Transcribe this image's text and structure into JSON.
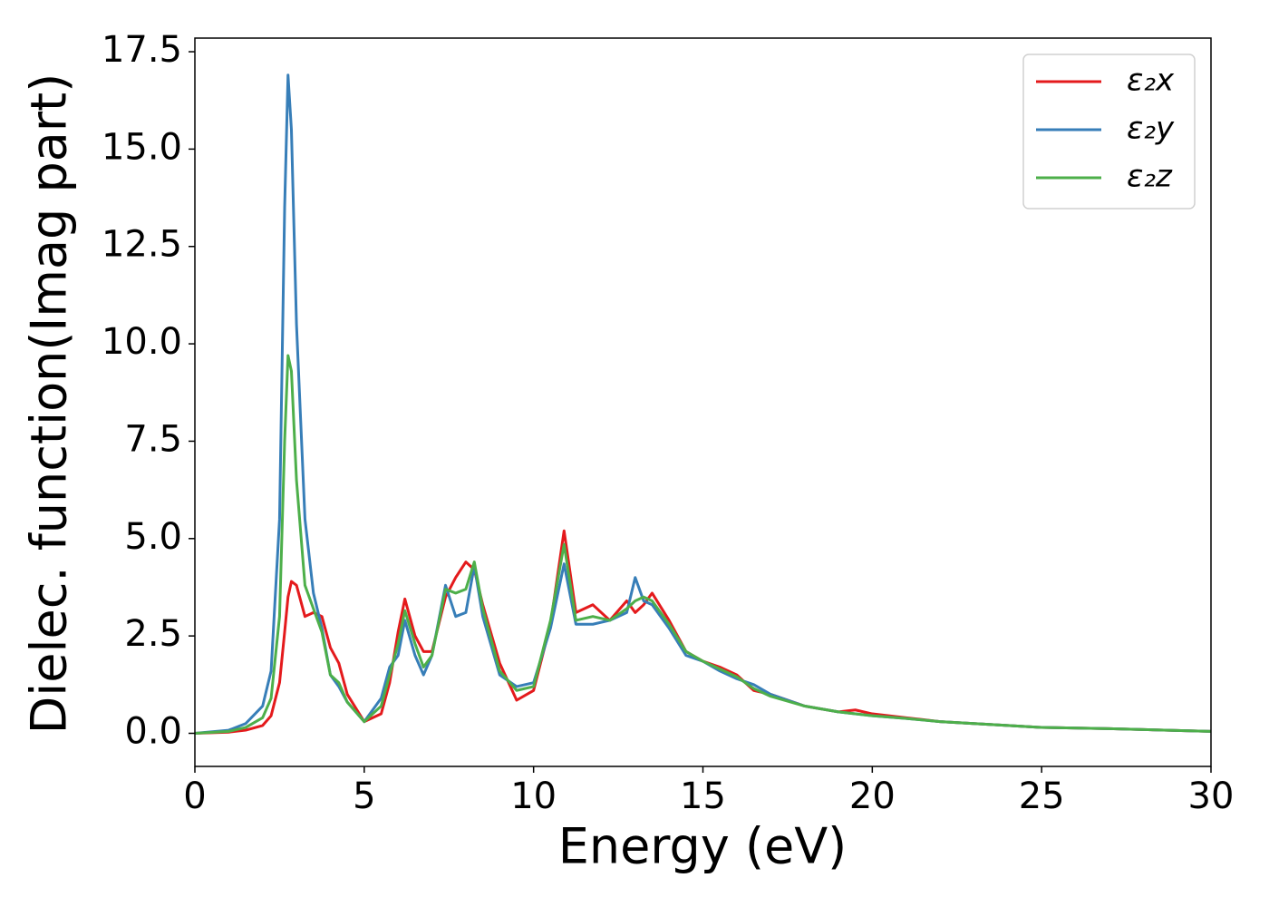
{
  "chart_data": {
    "type": "line",
    "x_label": "Energy (eV)",
    "y_label": "Dielec. function(Imag part)",
    "xlim": [
      0,
      30
    ],
    "xticks": [
      0,
      5,
      10,
      15,
      20,
      25,
      30
    ],
    "ylim": [
      -0.85,
      17.85
    ],
    "yticks": [
      {
        "value": 0,
        "label": "0.0"
      },
      2.5,
      {
        "value": 5,
        "label": "5.0"
      },
      7.5,
      {
        "value": 10,
        "label": "10.0"
      },
      12.5,
      {
        "value": 15,
        "label": "15.0"
      },
      17.5
    ],
    "legend": "upper right",
    "x": [
      0,
      1,
      1.5,
      2,
      2.25,
      2.5,
      2.65,
      2.75,
      2.85,
      3,
      3.25,
      3.5,
      3.75,
      4,
      4.25,
      4.5,
      5,
      5.5,
      5.75,
      6,
      6.2,
      6.5,
      6.75,
      7,
      7.4,
      7.7,
      8,
      8.25,
      8.5,
      9,
      9.5,
      10,
      10.5,
      10.9,
      11.25,
      11.75,
      12.25,
      12.75,
      13,
      13.25,
      13.5,
      14,
      14.5,
      15,
      15.5,
      16,
      16.5,
      17,
      18,
      19,
      19.5,
      20,
      21,
      22,
      23,
      24,
      25,
      27,
      30
    ],
    "series": [
      {
        "name": "ε₂x",
        "color": "#e41a1c",
        "values": [
          0,
          0.03,
          0.08,
          0.2,
          0.45,
          1.3,
          2.6,
          3.5,
          3.9,
          3.8,
          3.0,
          3.1,
          3.0,
          2.2,
          1.8,
          1.0,
          0.3,
          0.5,
          1.3,
          2.6,
          3.45,
          2.5,
          2.1,
          2.1,
          3.5,
          4.0,
          4.4,
          4.2,
          3.3,
          1.8,
          0.85,
          1.1,
          2.8,
          5.2,
          3.1,
          3.3,
          2.9,
          3.4,
          3.1,
          3.3,
          3.6,
          2.9,
          2.1,
          1.85,
          1.7,
          1.5,
          1.1,
          1.0,
          0.7,
          0.55,
          0.6,
          0.5,
          0.4,
          0.3,
          0.25,
          0.2,
          0.15,
          0.12,
          0.05
        ]
      },
      {
        "name": "ε₂y",
        "color": "#377eb8",
        "values": [
          0,
          0.08,
          0.25,
          0.7,
          1.6,
          5.5,
          13.5,
          16.9,
          15.5,
          10.5,
          5.5,
          3.6,
          2.7,
          1.5,
          1.2,
          0.8,
          0.3,
          0.9,
          1.7,
          2.0,
          2.9,
          2.0,
          1.5,
          2.0,
          3.8,
          3.0,
          3.1,
          4.3,
          3.0,
          1.5,
          1.2,
          1.3,
          2.7,
          4.35,
          2.8,
          2.8,
          2.9,
          3.1,
          4.0,
          3.4,
          3.3,
          2.7,
          2.0,
          1.85,
          1.6,
          1.4,
          1.25,
          1.0,
          0.7,
          0.55,
          0.5,
          0.45,
          0.38,
          0.3,
          0.25,
          0.2,
          0.15,
          0.12,
          0.05
        ]
      },
      {
        "name": "ε₂z",
        "color": "#4daf4a",
        "values": [
          0,
          0.05,
          0.15,
          0.4,
          0.9,
          3.0,
          7.5,
          9.7,
          9.3,
          6.5,
          3.8,
          3.2,
          2.6,
          1.5,
          1.3,
          0.8,
          0.3,
          0.7,
          1.5,
          2.3,
          3.15,
          2.3,
          1.7,
          2.0,
          3.7,
          3.6,
          3.7,
          4.4,
          3.2,
          1.6,
          1.1,
          1.2,
          2.9,
          4.85,
          2.9,
          3.0,
          2.9,
          3.2,
          3.4,
          3.5,
          3.4,
          2.8,
          2.1,
          1.85,
          1.65,
          1.45,
          1.15,
          0.95,
          0.7,
          0.55,
          0.5,
          0.45,
          0.38,
          0.3,
          0.25,
          0.2,
          0.15,
          0.12,
          0.05
        ]
      }
    ]
  }
}
